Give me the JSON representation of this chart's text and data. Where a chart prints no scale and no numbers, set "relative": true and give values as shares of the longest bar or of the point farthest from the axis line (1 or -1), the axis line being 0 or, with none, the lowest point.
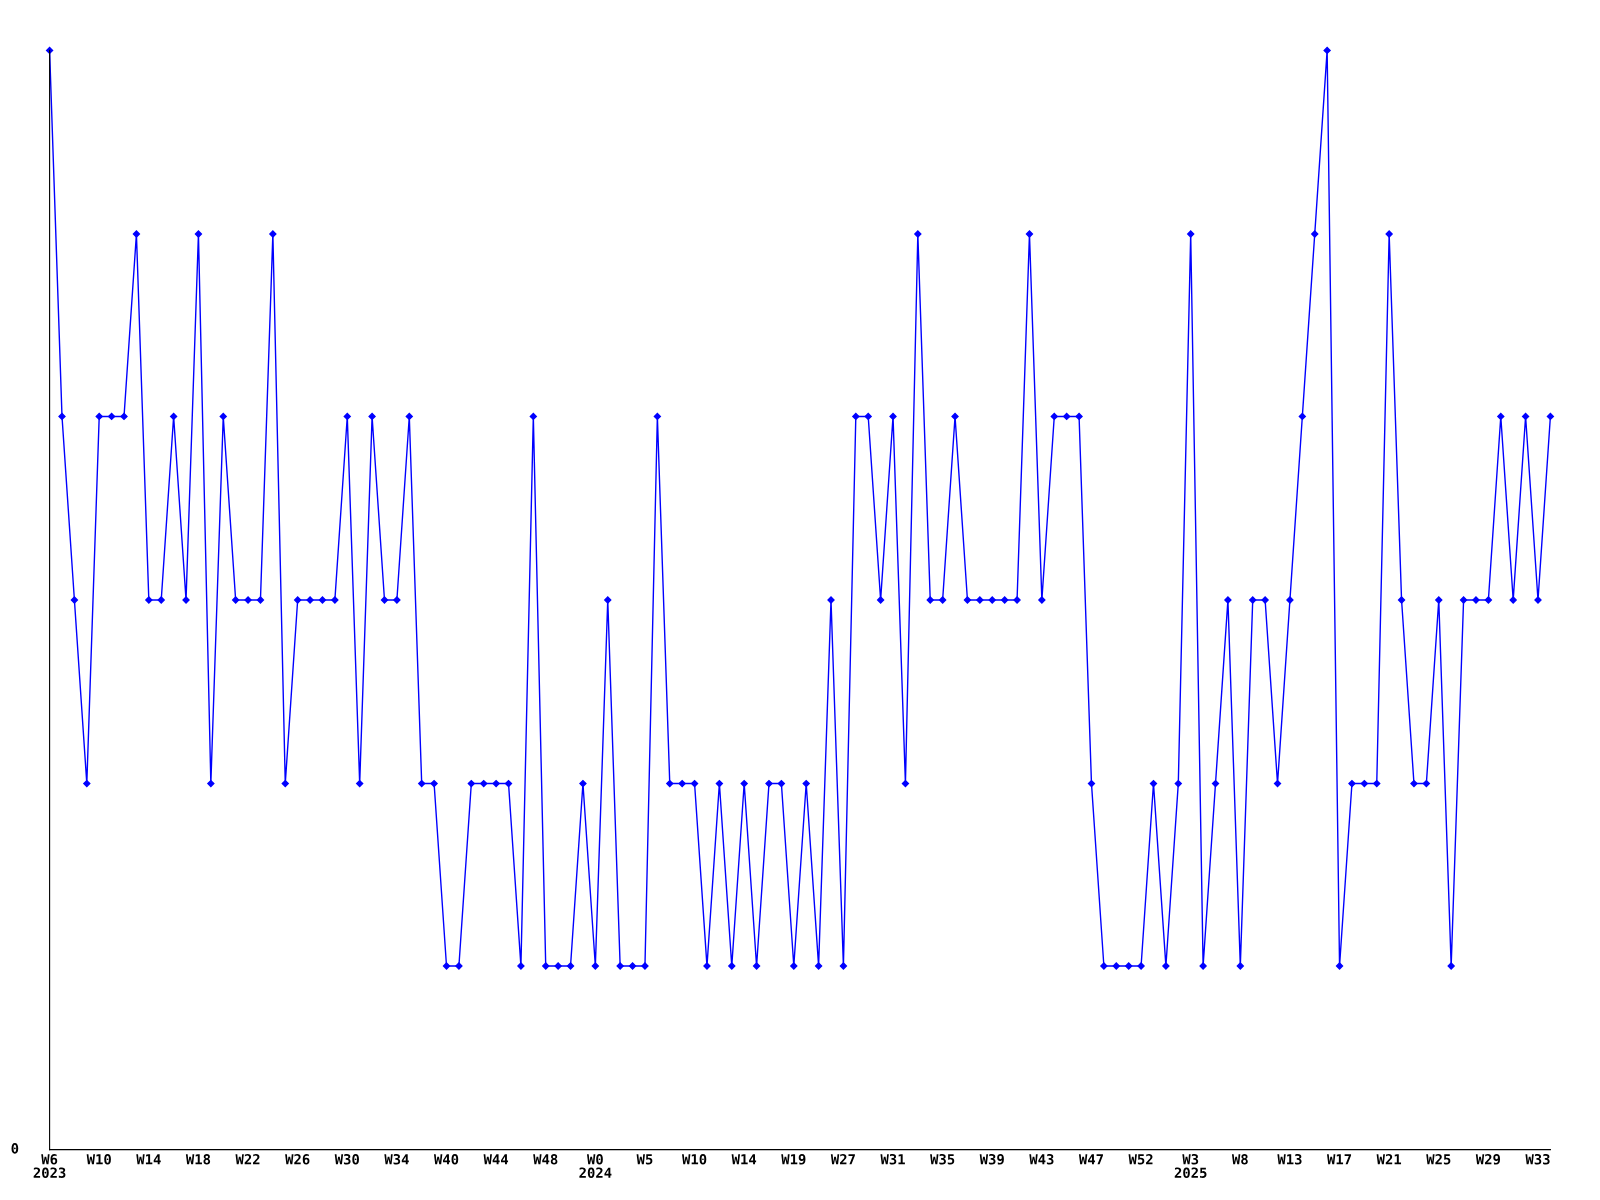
{
  "chart_data": {
    "type": "line",
    "relative": true,
    "marker": "diamond",
    "line_style": "solid",
    "grid": false,
    "legend": false,
    "categories": [
      "W6\n2023",
      null,
      null,
      null,
      "W10",
      null,
      null,
      null,
      "W14",
      null,
      null,
      null,
      "W18",
      null,
      null,
      null,
      "W22",
      null,
      null,
      null,
      "W26",
      null,
      null,
      null,
      "W30",
      null,
      null,
      null,
      "W34",
      null,
      null,
      null,
      "W40",
      null,
      null,
      null,
      "W44",
      null,
      null,
      null,
      "W48",
      null,
      null,
      null,
      "W0\n2024",
      null,
      null,
      null,
      "W5",
      null,
      null,
      null,
      "W10",
      null,
      null,
      null,
      "W14",
      null,
      null,
      null,
      "W19",
      null,
      null,
      null,
      "W27",
      null,
      null,
      null,
      "W31",
      null,
      null,
      null,
      "W35",
      null,
      null,
      null,
      "W39",
      null,
      null,
      null,
      "W43",
      null,
      null,
      null,
      "W47",
      null,
      null,
      null,
      "W52",
      null,
      null,
      null,
      "W3\n2025",
      null,
      null,
      null,
      "W8",
      null,
      null,
      null,
      "W13",
      null,
      null,
      null,
      "W17",
      null,
      null,
      null,
      "W21",
      null,
      null,
      null,
      "W25",
      null,
      null,
      null,
      "W29",
      null,
      null,
      null,
      "W33",
      null
    ],
    "annotations": [
      "0"
    ],
    "series": [
      {
        "color": "#0000ff",
        "values": [
          1,
          0.667,
          0.5,
          0.333,
          0.667,
          0.667,
          0.667,
          0.833,
          0.5,
          0.5,
          0.667,
          0.5,
          0.833,
          0.333,
          0.667,
          0.5,
          0.5,
          0.5,
          0.833,
          0.333,
          0.5,
          0.5,
          0.5,
          0.5,
          0.667,
          0.333,
          0.667,
          0.5,
          0.5,
          0.667,
          0.333,
          0.333,
          0.167,
          0.167,
          0.333,
          0.333,
          0.333,
          0.333,
          0.167,
          0.667,
          0.167,
          0.167,
          0.167,
          0.333,
          0.167,
          0.5,
          0.167,
          0.167,
          0.167,
          0.667,
          0.333,
          0.333,
          0.333,
          0.167,
          0.333,
          0.167,
          0.333,
          0.167,
          0.333,
          0.333,
          0.167,
          0.333,
          0.167,
          0.5,
          0.167,
          0.667,
          0.667,
          0.5,
          0.667,
          0.333,
          0.833,
          0.5,
          0.5,
          0.667,
          0.5,
          0.5,
          0.5,
          0.5,
          0.5,
          0.833,
          0.5,
          0.667,
          0.667,
          0.667,
          0.333,
          0.167,
          0.167,
          0.167,
          0.167,
          0.333,
          0.167,
          0.333,
          0.833,
          0.167,
          0.333,
          0.5,
          0.167,
          0.5,
          0.5,
          0.333,
          0.5,
          0.667,
          0.833,
          1,
          0.167,
          0.333,
          0.333,
          0.333,
          0.833,
          0.5,
          0.333,
          0.333,
          0.5,
          0.167,
          0.5,
          0.5,
          0.5,
          0.667,
          0.5,
          0.667,
          0.5,
          0.667
        ]
      }
    ],
    "tick_labels": "x"
  }
}
